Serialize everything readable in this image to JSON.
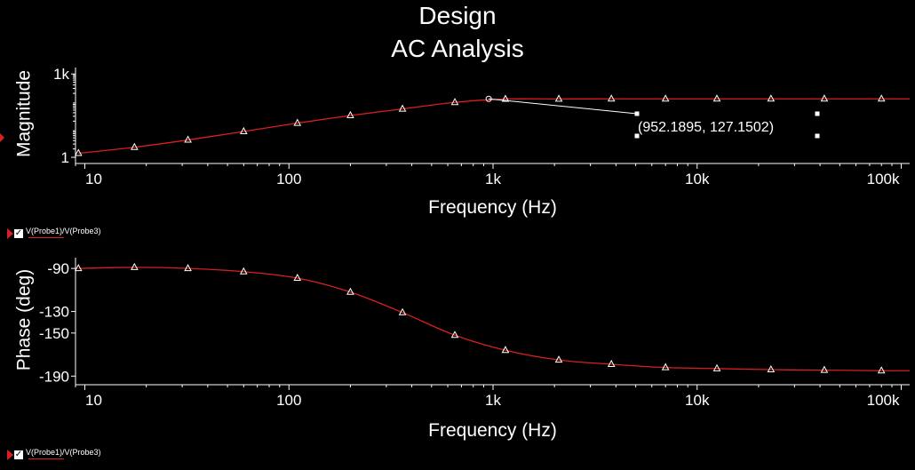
{
  "title": {
    "line1": "Design",
    "line2": "AC Analysis"
  },
  "colors": {
    "background": "#000000",
    "trace": "#d92020",
    "axis": "#ffffff",
    "marker": "#ffffff"
  },
  "cursor_readout": "(952.1895, 127.1502)",
  "legend": {
    "top_label": "V(Probe1)/V(Probe3)",
    "bottom_label": "V(Probe1)/V(Probe3)",
    "checked": true
  },
  "chart_data": [
    {
      "type": "line",
      "ylabel": "Magnitude",
      "xlabel": "Frequency (Hz)",
      "x_scale": "log",
      "y_scale": "log",
      "xlim": [
        9,
        110000
      ],
      "ylim": [
        0.6,
        1700
      ],
      "x_ticks": [
        10,
        100,
        1000,
        10000,
        100000
      ],
      "x_tick_labels": [
        "10",
        "100",
        "1k",
        "10k",
        "100k"
      ],
      "y_ticks": [
        1,
        1000
      ],
      "y_tick_labels": [
        "1",
        "1k"
      ],
      "grid": false,
      "series": [
        {
          "name": "V(Probe1)/V(Probe3)",
          "x": [
            9.3,
            17.5,
            32,
            60,
            110,
            200,
            360,
            650,
            1150,
            2100,
            3800,
            7000,
            12500,
            23000,
            42000,
            80000,
            110000
          ],
          "y": [
            1.4,
            2.3,
            4.2,
            8.5,
            17,
            32,
            55,
            95,
            125,
            126,
            127,
            127,
            127,
            127,
            127,
            127,
            127
          ]
        }
      ],
      "cursor": {
        "x": 952.1895,
        "y": 127.1502
      }
    },
    {
      "type": "line",
      "ylabel": "Phase (deg)",
      "xlabel": "Frequency (Hz)",
      "x_scale": "log",
      "xlim": [
        9,
        110000
      ],
      "ylim": [
        -198,
        -80
      ],
      "x_ticks": [
        10,
        100,
        1000,
        10000,
        100000
      ],
      "x_tick_labels": [
        "10",
        "100",
        "1k",
        "10k",
        "100k"
      ],
      "y_ticks": [
        -90,
        -130,
        -150,
        -190
      ],
      "y_tick_labels": [
        "-90",
        "-130",
        "-150",
        "-190"
      ],
      "grid": false,
      "series": [
        {
          "name": "V(Probe1)/V(Probe3)",
          "x": [
            9.3,
            17.5,
            32,
            60,
            110,
            200,
            360,
            650,
            1150,
            2100,
            3800,
            7000,
            12500,
            23000,
            42000,
            80000,
            110000
          ],
          "y": [
            -90,
            -89,
            -90,
            -93,
            -99,
            -112,
            -131,
            -152,
            -166,
            -175,
            -179,
            -182,
            -183,
            -184,
            -184.5,
            -185,
            -185
          ]
        }
      ]
    }
  ]
}
